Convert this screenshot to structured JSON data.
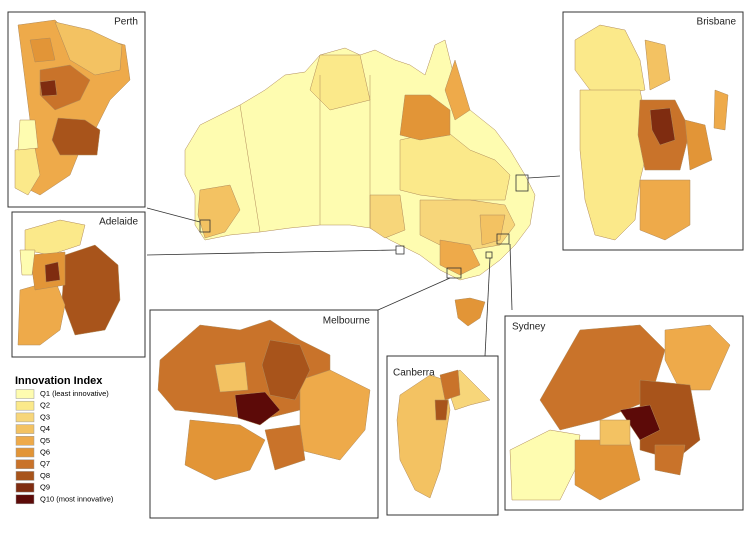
{
  "insets": [
    {
      "label": "Perth"
    },
    {
      "label": "Brisbane"
    },
    {
      "label": "Adelaide"
    },
    {
      "label": "Melbourne"
    },
    {
      "label": "Canberra"
    },
    {
      "label": "Sydney"
    }
  ],
  "legend": {
    "title": "Innovation Index",
    "items": [
      {
        "label": "Q1 (least innovative)",
        "color": "#fefcb0"
      },
      {
        "label": "Q2",
        "color": "#fbe98a"
      },
      {
        "label": "Q3",
        "color": "#f7d67a"
      },
      {
        "label": "Q4",
        "color": "#f3c262"
      },
      {
        "label": "Q5",
        "color": "#eeaa4a"
      },
      {
        "label": "Q6",
        "color": "#e29537"
      },
      {
        "label": "Q7",
        "color": "#c9732a"
      },
      {
        "label": "Q8",
        "color": "#a8541b"
      },
      {
        "label": "Q9",
        "color": "#7f2c10"
      },
      {
        "label": "Q10 (most innovative)",
        "color": "#5c0a08"
      }
    ]
  }
}
